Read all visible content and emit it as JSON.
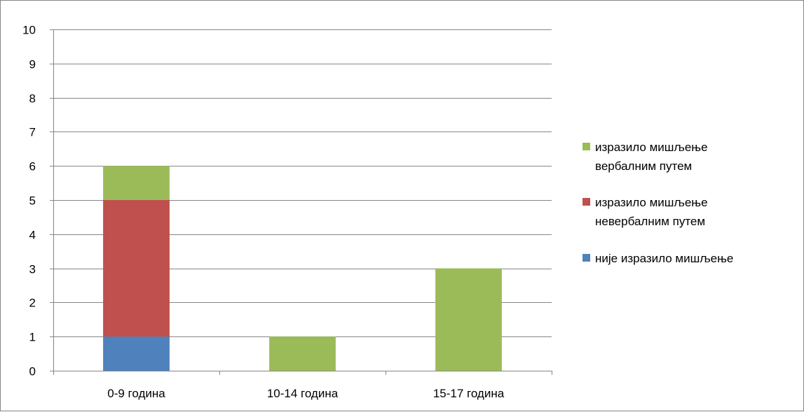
{
  "chart_data": {
    "type": "bar",
    "stacked": true,
    "categories": [
      "0-9 година",
      "10-14 година",
      "15-17 година"
    ],
    "series": [
      {
        "name": "није изразило мишљење",
        "color": "#4F81BD",
        "values": [
          1,
          0,
          0
        ]
      },
      {
        "name": "изразило мишљење невербалним путем",
        "color": "#C0504D",
        "values": [
          4,
          0,
          0
        ]
      },
      {
        "name": "изразило мишљење вербалним путем",
        "color": "#9BBB59",
        "values": [
          1,
          1,
          3
        ]
      }
    ],
    "title": "",
    "xlabel": "",
    "ylabel": "",
    "ylim": [
      0,
      10
    ],
    "yticks": [
      "0",
      "1",
      "2",
      "3",
      "4",
      "5",
      "6",
      "7",
      "8",
      "9",
      "10"
    ],
    "grid": true,
    "legend_position": "right",
    "legend": [
      {
        "lines": [
          "изразило мишљење",
          "вербалним путем"
        ],
        "color": "#9BBB59"
      },
      {
        "lines": [
          "изразило мишљење",
          "невербалним путем"
        ],
        "color": "#C0504D"
      },
      {
        "lines": [
          "није изразило мишљење"
        ],
        "color": "#4F81BD"
      }
    ]
  }
}
